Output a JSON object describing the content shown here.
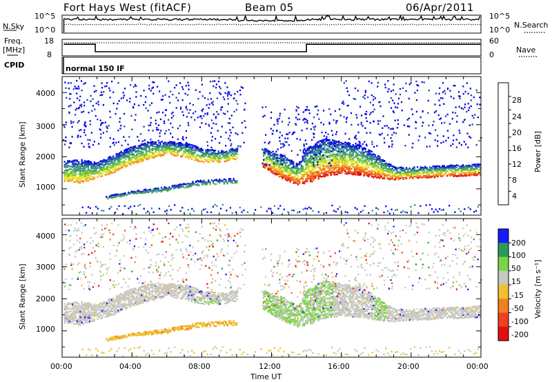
{
  "header": {
    "station": "Fort Hays West (fitACF)",
    "beam": "Beam 05",
    "date": "06/Apr/2011"
  },
  "top_panels": {
    "nsky_label": "N.Sky",
    "nsky_ticks": [
      "10^5",
      "10^0"
    ],
    "nsearch_label": "N.Search",
    "nsearch_ticks": [
      "10^5",
      "10^0"
    ],
    "freq_label": "Freq.",
    "freq_unit": "[MHz]",
    "freq_ticks": [
      "18",
      "8"
    ],
    "nave_label": "Nave",
    "nave_ticks": [
      "60",
      "0"
    ],
    "cpid_label": "CPID",
    "cpid_value": "normal 150 IF"
  },
  "colors": {
    "power_scale": [
      "#0000ee",
      "#1c3fb0",
      "#2f8a8a",
      "#4ea25e",
      "#7cc83a",
      "#e6e62a",
      "#f0a022",
      "#f06018",
      "#e01010"
    ],
    "velocity_scale": [
      "#1a1aff",
      "#2a9a5a",
      "#7ad44a",
      "#c8c8c0",
      "#f0c030",
      "#f08020",
      "#f04020",
      "#e01010"
    ]
  },
  "chart_data": [
    {
      "type": "line",
      "name": "frequency-nave",
      "x_unit": "hours UT",
      "series": [
        {
          "name": "Freq.",
          "x": [
            0.1,
            1.9,
            1.9,
            14.0,
            14.0,
            24.0
          ],
          "values": [
            15,
            15,
            10.5,
            10.5,
            15,
            15
          ]
        }
      ],
      "ylim": [
        8,
        18
      ]
    },
    {
      "type": "heatmap",
      "name": "power",
      "xlabel": "Time UT",
      "ylabel": "Slant Range [km]",
      "colorbar_label": "Power [dB]",
      "colorbar_ticks": [
        4,
        8,
        12,
        16,
        20,
        24,
        28
      ],
      "x_ticks": [
        "00:00",
        "04:00",
        "08:00",
        "12:00",
        "16:00",
        "20:00",
        "00:00"
      ],
      "y_ticks": [
        1000,
        2000,
        3000,
        4000
      ],
      "xlim": [
        0,
        24
      ],
      "ylim": [
        180,
        4500
      ],
      "bands": [
        {
          "name": "main-band-morning",
          "x": [
            0.1,
            1.0,
            2.0,
            3.0,
            4.0,
            5.0,
            6.0,
            7.0,
            8.0,
            9.0,
            10.0
          ],
          "low": [
            1250,
            1200,
            1350,
            1550,
            1800,
            1950,
            2100,
            2000,
            1850,
            1850,
            1950
          ],
          "high": [
            1900,
            1950,
            1850,
            2100,
            2350,
            2500,
            2500,
            2450,
            2300,
            2200,
            2300
          ],
          "peak_db": 22
        },
        {
          "name": "second-band",
          "x": [
            2.5,
            4.0,
            6.0,
            8.0,
            10.0
          ],
          "low": [
            700,
            850,
            950,
            1150,
            1200
          ],
          "high": [
            800,
            950,
            1100,
            1300,
            1350
          ],
          "peak_db": 12
        },
        {
          "name": "main-band-afternoon",
          "x": [
            11.5,
            12.5,
            13.5,
            14.0,
            15.0,
            16.0,
            17.0,
            18.0,
            19.0,
            20.0,
            22.0,
            24.0
          ],
          "low": [
            1700,
            1350,
            1150,
            1200,
            1400,
            1500,
            1450,
            1350,
            1300,
            1350,
            1400,
            1450
          ],
          "high": [
            2300,
            2100,
            1800,
            2300,
            2600,
            2500,
            2400,
            2100,
            1700,
            1700,
            1750,
            1800
          ],
          "peak_db": 28
        }
      ]
    },
    {
      "type": "heatmap",
      "name": "velocity",
      "xlabel": "Time UT",
      "ylabel": "Slant Range [km]",
      "colorbar_label": "Velocity [m s⁻¹]",
      "colorbar_ticks": [
        200,
        100,
        50,
        15,
        -15,
        -50,
        -100,
        -200
      ],
      "x_ticks": [
        "00:00",
        "04:00",
        "08:00",
        "12:00",
        "16:00",
        "20:00",
        "00:00"
      ],
      "y_ticks": [
        1000,
        2000,
        3000,
        4000
      ],
      "xlim": [
        0,
        24
      ],
      "ylim": [
        180,
        4500
      ]
    }
  ],
  "axes": {
    "xlabel": "Time UT",
    "x_ticks": [
      "00:00",
      "04:00",
      "08:00",
      "12:00",
      "16:00",
      "20:00",
      "00:00"
    ],
    "ylabel": "Slant Range [km]",
    "y_ticks": [
      "1000",
      "2000",
      "3000",
      "4000"
    ],
    "power_label": "Power [dB]",
    "power_ticks": [
      "28",
      "24",
      "20",
      "16",
      "12",
      "8",
      "4"
    ],
    "velocity_label": "Velocity [m s⁻¹]",
    "velocity_ticks": [
      "200",
      "100",
      "50",
      "15",
      "-15",
      "-50",
      "-100",
      "-200"
    ]
  }
}
